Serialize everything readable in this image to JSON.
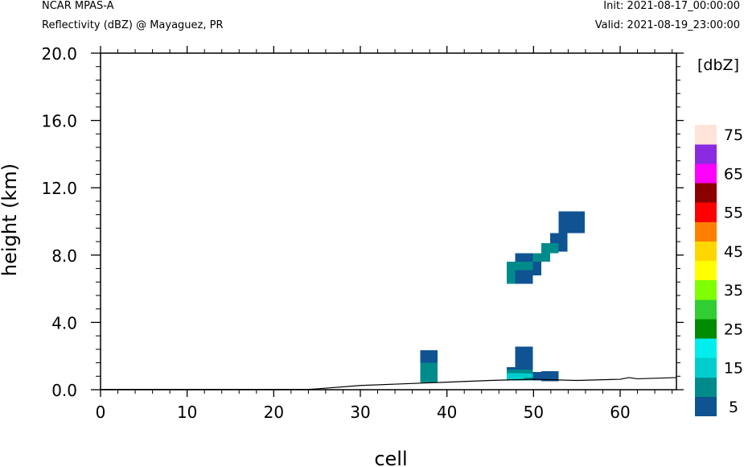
{
  "header": {
    "left_line1": "NCAR MPAS-A",
    "left_line2": "Reflectivity (dBZ) @ Mayaguez, PR",
    "right_line1": "Init: 2021-08-17_00:00:00",
    "right_line2": "Valid: 2021-08-19_23:00:00"
  },
  "chart_data": {
    "type": "heatmap",
    "xlabel": "cell",
    "ylabel": "height (km)",
    "xlim": [
      0,
      66.5
    ],
    "ylim": [
      0,
      20
    ],
    "x_ticks": [
      0,
      10,
      20,
      30,
      40,
      50,
      60
    ],
    "x_tick_labels": [
      "0",
      "10",
      "20",
      "30",
      "40",
      "50",
      "60"
    ],
    "y_ticks": [
      0,
      4,
      8,
      12,
      16,
      20
    ],
    "y_tick_labels": [
      "0.0",
      "4.0",
      "8.0",
      "12.0",
      "16.0",
      "20.0"
    ],
    "terrain": {
      "x": [
        0,
        24,
        25,
        30,
        35,
        40,
        45,
        50,
        55,
        60,
        61,
        62,
        66.5
      ],
      "h": [
        0.02,
        0.02,
        0.05,
        0.25,
        0.35,
        0.45,
        0.55,
        0.62,
        0.55,
        0.62,
        0.72,
        0.65,
        0.72
      ]
    },
    "colorbar": {
      "title": "[dbZ]",
      "levels": [
        5,
        10,
        15,
        20,
        25,
        30,
        35,
        40,
        45,
        50,
        55,
        60,
        65,
        70,
        75
      ],
      "labels": [
        "5",
        "15",
        "25",
        "35",
        "45",
        "55",
        "65",
        "75"
      ],
      "colors": [
        "#0f5393",
        "#008b8b",
        "#00cdcd",
        "#00eeee",
        "#008b00",
        "#32cd32",
        "#7fff00",
        "#ffff00",
        "#ffd700",
        "#ff7f00",
        "#ff0000",
        "#8b0000",
        "#ff00ff",
        "#8a2be2",
        "#ffe4d9",
        "#ffffff"
      ]
    },
    "cells": [
      {
        "x0": 36.9,
        "x1": 38.9,
        "z0": 1.6,
        "z1": 2.35,
        "dbz": 5
      },
      {
        "x0": 36.9,
        "x1": 38.9,
        "z0": 0.42,
        "z1": 1.6,
        "dbz": 10
      },
      {
        "x0": 47.9,
        "x1": 49.9,
        "z0": 1.2,
        "z1": 2.55,
        "dbz": 5
      },
      {
        "x0": 46.9,
        "x1": 47.9,
        "z0": 0.6,
        "z1": 1.35,
        "dbz": 5
      },
      {
        "x0": 46.9,
        "x1": 49.9,
        "z0": 0.55,
        "z1": 1.2,
        "dbz": 10
      },
      {
        "x0": 46.9,
        "x1": 48.9,
        "z0": 0.62,
        "z1": 0.98,
        "dbz": 15
      },
      {
        "x0": 48.9,
        "x1": 49.9,
        "z0": 0.72,
        "z1": 0.95,
        "dbz": 15
      },
      {
        "x0": 49.9,
        "x1": 50.9,
        "z0": 0.55,
        "z1": 1.05,
        "dbz": 5
      },
      {
        "x0": 50.9,
        "x1": 52.9,
        "z0": 0.5,
        "z1": 1.1,
        "dbz": 5
      },
      {
        "x0": 47.9,
        "x1": 49.9,
        "z0": 7.6,
        "z1": 8.1,
        "dbz": 5
      },
      {
        "x0": 46.9,
        "x1": 47.9,
        "z0": 6.3,
        "z1": 7.6,
        "dbz": 10
      },
      {
        "x0": 47.9,
        "x1": 49.9,
        "z0": 7.1,
        "z1": 7.6,
        "dbz": 10
      },
      {
        "x0": 47.9,
        "x1": 49.9,
        "z0": 6.3,
        "z1": 7.1,
        "dbz": 5
      },
      {
        "x0": 49.9,
        "x1": 50.9,
        "z0": 6.8,
        "z1": 7.6,
        "dbz": 5
      },
      {
        "x0": 49.9,
        "x1": 51.9,
        "z0": 7.6,
        "z1": 8.1,
        "dbz": 10
      },
      {
        "x0": 50.9,
        "x1": 52.9,
        "z0": 8.1,
        "z1": 8.7,
        "dbz": 10
      },
      {
        "x0": 51.9,
        "x1": 52.9,
        "z0": 8.7,
        "z1": 9.3,
        "dbz": 5
      },
      {
        "x0": 52.9,
        "x1": 53.9,
        "z0": 8.2,
        "z1": 9.3,
        "dbz": 5
      },
      {
        "x0": 52.9,
        "x1": 55.9,
        "z0": 9.3,
        "z1": 10.6,
        "dbz": 5
      }
    ]
  }
}
